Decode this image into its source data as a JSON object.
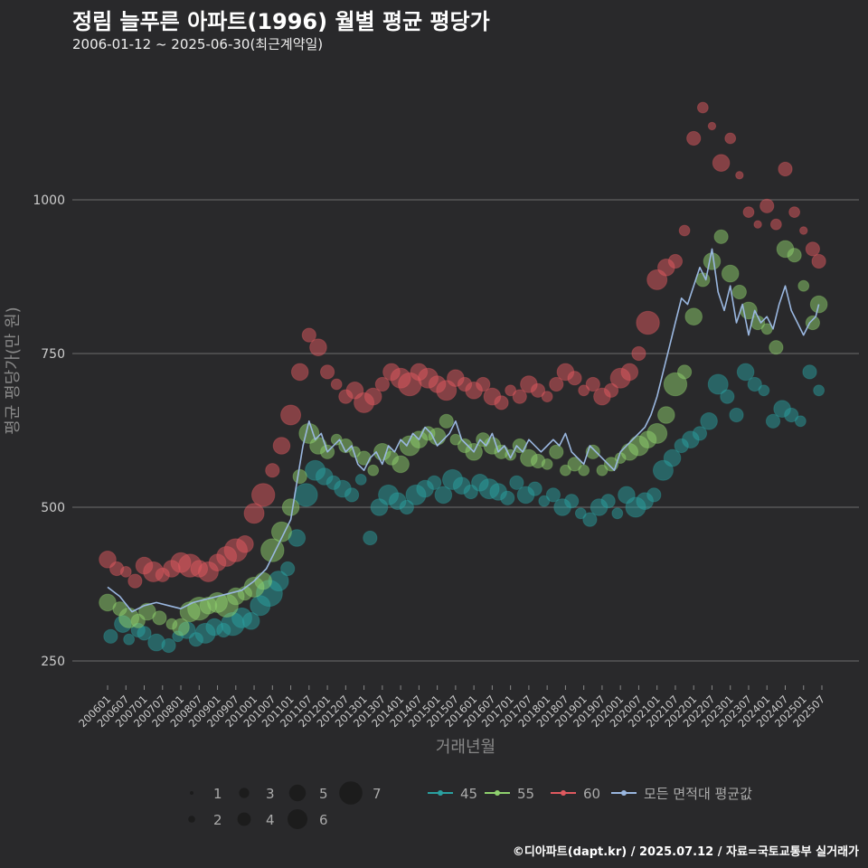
{
  "header": {
    "title": "정림 늘푸른 아파트(1996) 월별 평균 평당가",
    "subtitle": "2006-01-12 ~ 2025-06-30(최근계약일)"
  },
  "credit": "©디아파트(dapt.kr) / 2025.07.12 / 자료=국토교통부 실거래가",
  "colors": {
    "background": "#29292b",
    "s45": "#2aa0a0",
    "s55": "#8fd16e",
    "s60": "#e0595f",
    "avg": "#9ab7e0",
    "grid": "#6d6d6d"
  },
  "chart_data": {
    "type": "scatter",
    "title": "정림 늘푸른 아파트(1996) 월별 평균 평당가",
    "xlabel": "거래년월",
    "ylabel": "평균 평당가(만 원)",
    "ylim": [
      210,
      1180
    ],
    "yticks": [
      250,
      500,
      750,
      1000
    ],
    "xticks": [
      "200601",
      "200607",
      "200701",
      "200707",
      "200801",
      "200807",
      "200901",
      "200907",
      "201001",
      "201007",
      "201101",
      "201107",
      "201201",
      "201207",
      "201301",
      "201307",
      "201401",
      "201407",
      "201501",
      "201507",
      "201601",
      "201607",
      "201701",
      "201707",
      "201801",
      "201807",
      "201901",
      "201907",
      "202001",
      "202007",
      "202101",
      "202107",
      "202201",
      "202207",
      "202301",
      "202307",
      "202401",
      "202407",
      "202501",
      "202507"
    ],
    "size_legend": [
      "1",
      "2",
      "3",
      "4",
      "5",
      "6",
      "7"
    ],
    "legend_position": "bottom",
    "series": [
      {
        "name": "45",
        "color": "#2aa0a0",
        "x": [
          "200602",
          "200606",
          "200608",
          "200611",
          "200701",
          "200705",
          "200709",
          "200712",
          "200803",
          "200806",
          "200809",
          "200812",
          "200903",
          "200906",
          "200909",
          "200912",
          "201003",
          "201006",
          "201009",
          "201012",
          "201103",
          "201106",
          "201109",
          "201112",
          "201203",
          "201206",
          "201209",
          "201212",
          "201303",
          "201306",
          "201309",
          "201312",
          "201403",
          "201406",
          "201409",
          "201412",
          "201503",
          "201506",
          "201509",
          "201512",
          "201603",
          "201606",
          "201609",
          "201612",
          "201703",
          "201706",
          "201709",
          "201712",
          "201803",
          "201806",
          "201809",
          "201812",
          "201903",
          "201906",
          "201909",
          "201912",
          "202003",
          "202006",
          "202009",
          "202012",
          "202103",
          "202106",
          "202109",
          "202112",
          "202203",
          "202206",
          "202209",
          "202212",
          "202303",
          "202306",
          "202309",
          "202312",
          "202403",
          "202406",
          "202409",
          "202412",
          "202503",
          "202506"
        ],
        "y": [
          290,
          310,
          285,
          300,
          295,
          280,
          275,
          290,
          300,
          285,
          295,
          305,
          300,
          310,
          320,
          315,
          340,
          360,
          380,
          400,
          450,
          520,
          560,
          550,
          540,
          530,
          520,
          545,
          450,
          500,
          520,
          510,
          500,
          520,
          530,
          540,
          520,
          545,
          535,
          525,
          540,
          530,
          525,
          515,
          540,
          520,
          530,
          510,
          520,
          500,
          510,
          490,
          480,
          500,
          510,
          490,
          520,
          500,
          510,
          520,
          560,
          580,
          600,
          610,
          620,
          640,
          700,
          680,
          650,
          720,
          700,
          690,
          640,
          660,
          650,
          640,
          720,
          690
        ],
        "n": [
          3,
          4,
          2,
          3,
          3,
          4,
          3,
          2,
          4,
          3,
          5,
          4,
          3,
          6,
          5,
          4,
          5,
          7,
          5,
          3,
          4,
          6,
          5,
          4,
          3,
          4,
          3,
          2,
          3,
          4,
          5,
          4,
          3,
          5,
          4,
          3,
          4,
          5,
          4,
          3,
          4,
          5,
          4,
          3,
          3,
          4,
          3,
          2,
          3,
          4,
          3,
          2,
          3,
          4,
          3,
          2,
          4,
          5,
          4,
          3,
          5,
          4,
          3,
          4,
          3,
          4,
          5,
          3,
          3,
          4,
          3,
          2,
          3,
          4,
          3,
          2,
          3,
          2
        ]
      },
      {
        "name": "55",
        "color": "#8fd16e",
        "x": [
          "200601",
          "200605",
          "200608",
          "200611",
          "200702",
          "200706",
          "200710",
          "200801",
          "200804",
          "200807",
          "200810",
          "200901",
          "200904",
          "200907",
          "200910",
          "201001",
          "201004",
          "201007",
          "201010",
          "201101",
          "201104",
          "201107",
          "201110",
          "201201",
          "201204",
          "201207",
          "201210",
          "201301",
          "201304",
          "201307",
          "201310",
          "201401",
          "201404",
          "201407",
          "201410",
          "201501",
          "201504",
          "201507",
          "201510",
          "201601",
          "201604",
          "201607",
          "201610",
          "201701",
          "201704",
          "201707",
          "201710",
          "201801",
          "201804",
          "201807",
          "201810",
          "201901",
          "201904",
          "201907",
          "201910",
          "202001",
          "202004",
          "202007",
          "202010",
          "202101",
          "202104",
          "202107",
          "202110",
          "202201",
          "202204",
          "202207",
          "202210",
          "202301",
          "202304",
          "202307",
          "202310",
          "202401",
          "202404",
          "202407",
          "202410",
          "202501",
          "202504",
          "202506"
        ],
        "y": [
          345,
          335,
          320,
          315,
          330,
          320,
          310,
          305,
          330,
          335,
          340,
          345,
          340,
          355,
          360,
          370,
          380,
          430,
          460,
          500,
          550,
          620,
          600,
          590,
          610,
          600,
          590,
          580,
          560,
          590,
          580,
          570,
          600,
          610,
          620,
          615,
          640,
          610,
          600,
          590,
          610,
          600,
          590,
          585,
          600,
          580,
          575,
          570,
          590,
          560,
          570,
          560,
          590,
          560,
          570,
          580,
          590,
          600,
          610,
          620,
          650,
          700,
          720,
          810,
          870,
          900,
          940,
          880,
          850,
          820,
          800,
          790,
          760,
          920,
          910,
          860,
          800,
          830
        ],
        "n": [
          4,
          3,
          5,
          3,
          4,
          3,
          2,
          4,
          5,
          6,
          4,
          5,
          6,
          4,
          3,
          5,
          4,
          6,
          5,
          4,
          3,
          5,
          4,
          3,
          2,
          3,
          2,
          3,
          2,
          4,
          3,
          4,
          5,
          4,
          3,
          4,
          3,
          2,
          3,
          4,
          3,
          4,
          3,
          2,
          3,
          4,
          3,
          2,
          3,
          2,
          3,
          2,
          3,
          2,
          3,
          2,
          4,
          5,
          4,
          5,
          4,
          6,
          3,
          4,
          3,
          4,
          3,
          4,
          3,
          4,
          3,
          2,
          3,
          4,
          3,
          2,
          3,
          4
        ]
      },
      {
        "name": "60",
        "color": "#e0595f",
        "x": [
          "200601",
          "200604",
          "200607",
          "200610",
          "200701",
          "200704",
          "200707",
          "200710",
          "200801",
          "200804",
          "200807",
          "200810",
          "200901",
          "200904",
          "200907",
          "200910",
          "201001",
          "201004",
          "201007",
          "201010",
          "201101",
          "201104",
          "201107",
          "201110",
          "201201",
          "201204",
          "201207",
          "201210",
          "201301",
          "201304",
          "201307",
          "201310",
          "201401",
          "201404",
          "201407",
          "201410",
          "201501",
          "201504",
          "201507",
          "201510",
          "201601",
          "201604",
          "201607",
          "201610",
          "201701",
          "201704",
          "201707",
          "201710",
          "201801",
          "201804",
          "201807",
          "201810",
          "201901",
          "201904",
          "201907",
          "201910",
          "202001",
          "202004",
          "202007",
          "202010",
          "202101",
          "202104",
          "202107",
          "202110",
          "202201",
          "202204",
          "202207",
          "202210",
          "202301",
          "202304",
          "202307",
          "202310",
          "202401",
          "202404",
          "202407",
          "202410",
          "202501",
          "202504",
          "202506"
        ],
        "y": [
          415,
          400,
          395,
          380,
          405,
          395,
          390,
          400,
          410,
          405,
          400,
          395,
          410,
          420,
          430,
          440,
          490,
          520,
          560,
          600,
          650,
          720,
          780,
          760,
          720,
          700,
          680,
          690,
          670,
          680,
          700,
          720,
          710,
          700,
          720,
          710,
          700,
          690,
          710,
          700,
          690,
          700,
          680,
          670,
          690,
          680,
          700,
          690,
          680,
          700,
          720,
          710,
          690,
          700,
          680,
          690,
          710,
          720,
          750,
          800,
          870,
          890,
          900,
          950,
          1100,
          1150,
          1120,
          1060,
          1100,
          1040,
          980,
          960,
          990,
          960,
          1050,
          980,
          950,
          920,
          900
        ],
        "n": [
          4,
          3,
          2,
          3,
          4,
          5,
          3,
          4,
          5,
          6,
          4,
          5,
          4,
          5,
          6,
          4,
          5,
          6,
          3,
          4,
          5,
          4,
          3,
          4,
          3,
          2,
          3,
          4,
          5,
          4,
          3,
          4,
          5,
          6,
          4,
          5,
          4,
          5,
          4,
          3,
          4,
          3,
          4,
          3,
          2,
          3,
          4,
          3,
          2,
          3,
          4,
          3,
          2,
          3,
          4,
          3,
          5,
          4,
          3,
          6,
          5,
          4,
          3,
          2,
          3,
          2,
          1,
          4,
          2,
          1,
          2,
          1,
          3,
          2,
          3,
          2,
          1,
          3,
          3
        ]
      },
      {
        "name": "모든 면적대 평균값",
        "color": "#9ab7e0",
        "x": [
          "200601",
          "200605",
          "200609",
          "200701",
          "200705",
          "200709",
          "200801",
          "200805",
          "200809",
          "200901",
          "200905",
          "200909",
          "201001",
          "201005",
          "201009",
          "201101",
          "201103",
          "201105",
          "201107",
          "201109",
          "201111",
          "201201",
          "201203",
          "201205",
          "201207",
          "201209",
          "201211",
          "201301",
          "201303",
          "201305",
          "201307",
          "201309",
          "201311",
          "201401",
          "201403",
          "201405",
          "201407",
          "201409",
          "201411",
          "201501",
          "201503",
          "201505",
          "201507",
          "201509",
          "201511",
          "201601",
          "201603",
          "201605",
          "201607",
          "201609",
          "201611",
          "201701",
          "201703",
          "201705",
          "201707",
          "201709",
          "201711",
          "201801",
          "201803",
          "201805",
          "201807",
          "201809",
          "201811",
          "201901",
          "201903",
          "201905",
          "201907",
          "201909",
          "201911",
          "202001",
          "202003",
          "202005",
          "202007",
          "202009",
          "202011",
          "202101",
          "202103",
          "202105",
          "202107",
          "202109",
          "202111",
          "202201",
          "202203",
          "202205",
          "202207",
          "202209",
          "202211",
          "202301",
          "202303",
          "202305",
          "202307",
          "202309",
          "202311",
          "202401",
          "202403",
          "202405",
          "202407",
          "202409",
          "202411",
          "202501",
          "202503",
          "202505",
          "202506"
        ],
        "y": [
          370,
          355,
          330,
          340,
          345,
          340,
          335,
          345,
          350,
          355,
          360,
          365,
          380,
          400,
          440,
          480,
          540,
          600,
          640,
          610,
          620,
          590,
          600,
          610,
          590,
          600,
          570,
          560,
          580,
          590,
          570,
          600,
          590,
          610,
          600,
          620,
          610,
          630,
          620,
          600,
          610,
          620,
          640,
          610,
          600,
          590,
          610,
          600,
          620,
          590,
          600,
          580,
          600,
          590,
          610,
          600,
          590,
          600,
          610,
          600,
          620,
          590,
          580,
          570,
          600,
          590,
          580,
          570,
          560,
          590,
          600,
          610,
          620,
          630,
          650,
          680,
          720,
          760,
          800,
          840,
          830,
          860,
          890,
          870,
          920,
          850,
          820,
          860,
          800,
          830,
          780,
          820,
          800,
          810,
          790,
          830,
          860,
          820,
          800,
          780,
          800,
          810,
          830
        ]
      }
    ]
  }
}
